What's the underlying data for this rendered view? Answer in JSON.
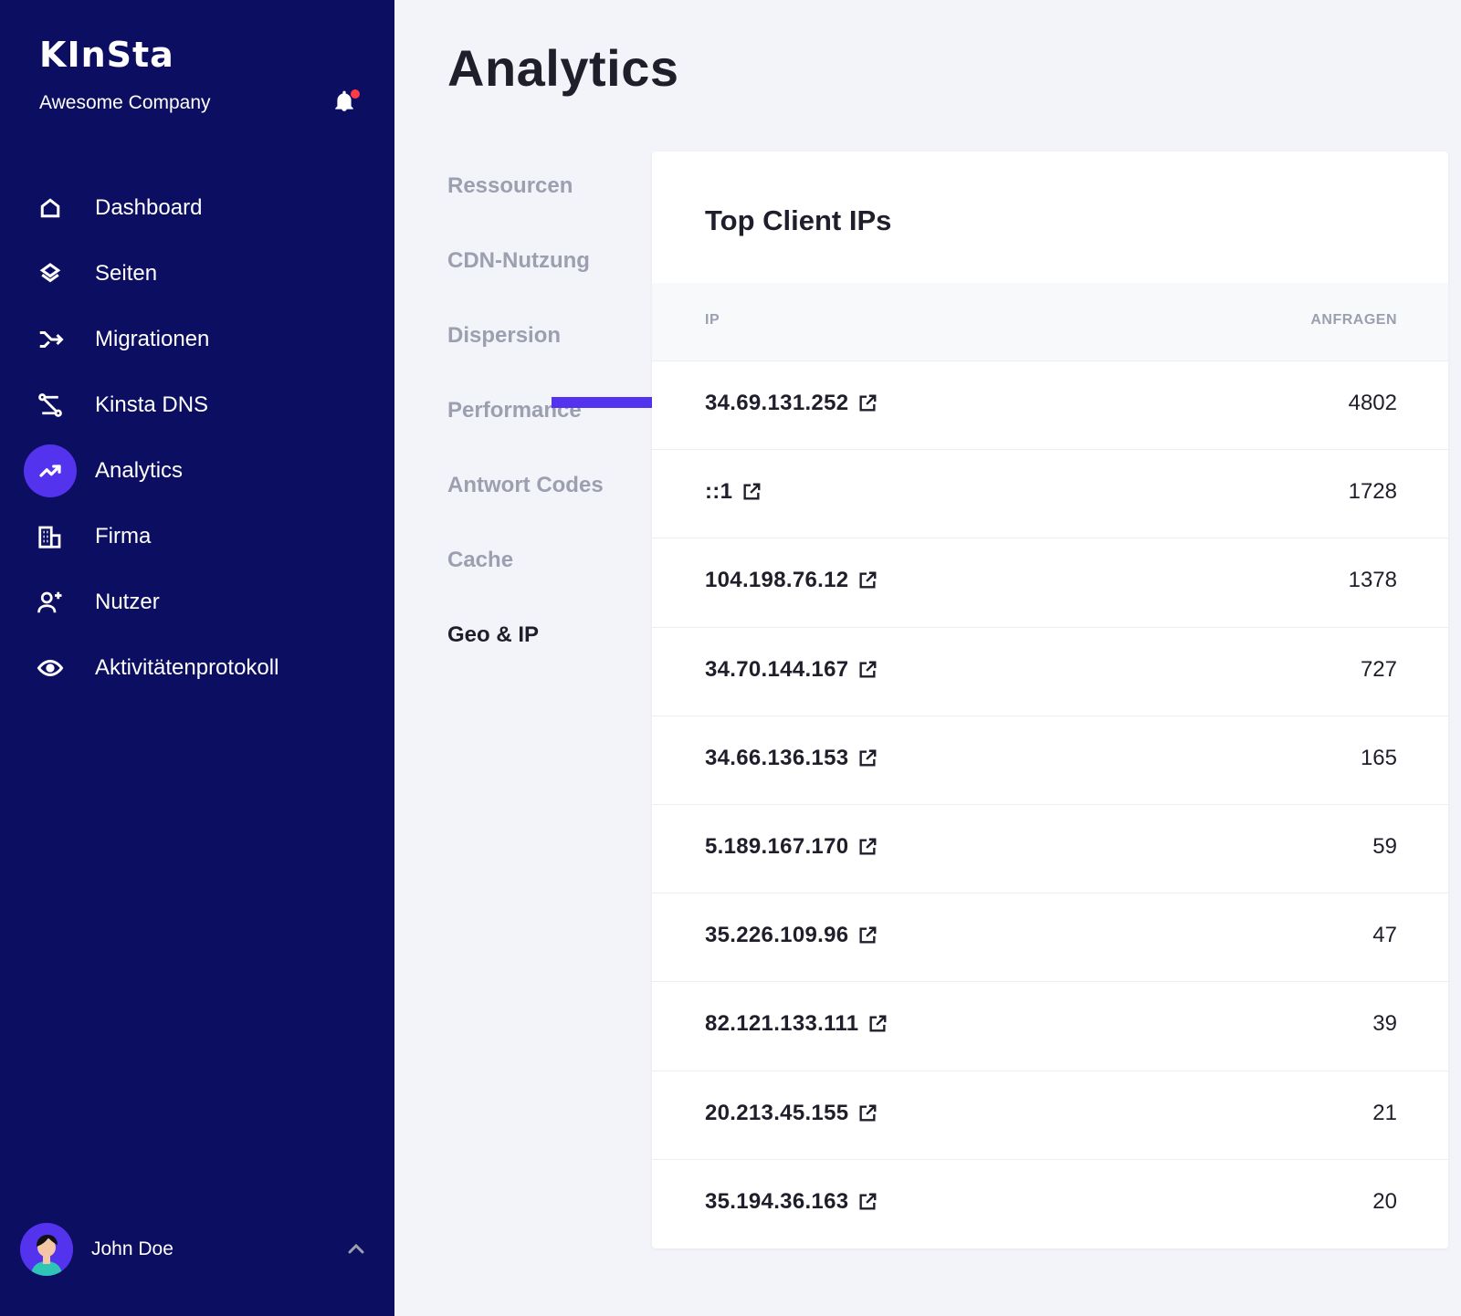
{
  "sidebar": {
    "logo": "KInSta",
    "company": "Awesome Company",
    "items": [
      {
        "label": "Dashboard",
        "icon": "home-icon"
      },
      {
        "label": "Seiten",
        "icon": "layers-icon"
      },
      {
        "label": "Migrationen",
        "icon": "migration-icon"
      },
      {
        "label": "Kinsta DNS",
        "icon": "dns-icon"
      },
      {
        "label": "Analytics",
        "icon": "trend-up-icon",
        "active": true
      },
      {
        "label": "Firma",
        "icon": "building-icon"
      },
      {
        "label": "Nutzer",
        "icon": "user-add-icon"
      },
      {
        "label": "Aktivitätenprotokoll",
        "icon": "eye-icon"
      }
    ],
    "user": {
      "name": "John Doe"
    }
  },
  "main": {
    "title": "Analytics",
    "subnav": [
      {
        "label": "Ressourcen"
      },
      {
        "label": "CDN-Nutzung"
      },
      {
        "label": "Dispersion"
      },
      {
        "label": "Performance"
      },
      {
        "label": "Antwort Codes"
      },
      {
        "label": "Cache"
      },
      {
        "label": "Geo & IP",
        "active": true
      }
    ],
    "card": {
      "title": "Top Client IPs",
      "columns": {
        "ip": "IP",
        "requests": "ANFRAGEN"
      },
      "rows": [
        {
          "ip": "34.69.131.252",
          "requests": "4802"
        },
        {
          "ip": "::1",
          "requests": "1728"
        },
        {
          "ip": "104.198.76.12",
          "requests": "1378"
        },
        {
          "ip": "34.70.144.167",
          "requests": "727"
        },
        {
          "ip": "34.66.136.153",
          "requests": "165"
        },
        {
          "ip": "5.189.167.170",
          "requests": "59"
        },
        {
          "ip": "35.226.109.96",
          "requests": "47"
        },
        {
          "ip": "82.121.133.111",
          "requests": "39"
        },
        {
          "ip": "20.213.45.155",
          "requests": "21"
        },
        {
          "ip": "35.194.36.163",
          "requests": "20"
        }
      ]
    }
  },
  "colors": {
    "sidebar_bg": "#0c0e61",
    "accent": "#5333ed",
    "notification": "#ff3b4a"
  }
}
